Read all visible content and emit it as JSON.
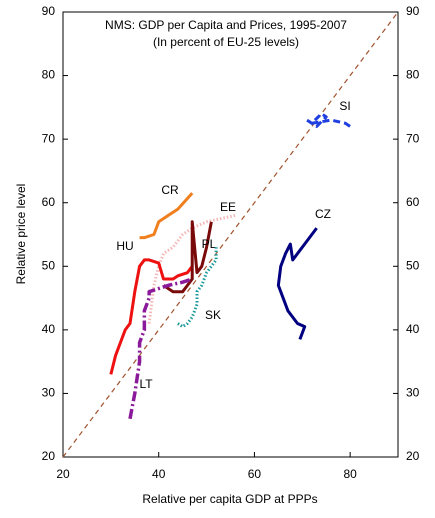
{
  "chart_data": {
    "type": "line",
    "title": "NMS: GDP per Capita and Prices, 1995-2007",
    "subtitle": "(In percent of EU-25 levels)",
    "x_label": "Relative per capita GDP at PPPs",
    "y_label": "Relative price level",
    "xlim": [
      20,
      90
    ],
    "xticks": [
      20,
      40,
      60,
      80
    ],
    "ylim": [
      20,
      90
    ],
    "yticks": [
      20,
      30,
      40,
      50,
      60,
      70,
      80,
      90
    ],
    "y2lim": [
      20,
      90
    ],
    "y2ticks": [
      20,
      30,
      40,
      50,
      60,
      70,
      80,
      90
    ],
    "grid": false,
    "reference_line": {
      "x": [
        20,
        90
      ],
      "values": [
        20,
        90
      ],
      "color": "#a0522d",
      "style": "dashed"
    },
    "series": [
      {
        "name": "SI",
        "color": "#1f3fe0",
        "style": "dashed",
        "x": [
          71,
          73,
          75,
          74,
          72,
          76,
          79,
          80
        ],
        "values": [
          73,
          72,
          73.5,
          74,
          72.5,
          73,
          72.5,
          72
        ]
      },
      {
        "name": "CZ",
        "color": "#000080",
        "style": "solid",
        "x": [
          69.5,
          70.5,
          69,
          67,
          66,
          65,
          65.5,
          66.5,
          67.5,
          68,
          69,
          71,
          73
        ],
        "values": [
          38.5,
          40.5,
          41,
          43,
          45,
          47,
          50,
          52,
          53.5,
          51,
          52,
          54,
          56
        ]
      },
      {
        "name": "EE",
        "color": "#f4b6b6",
        "style": "dotted",
        "x": [
          38,
          38.5,
          39,
          40,
          41,
          43,
          45,
          47,
          50,
          53,
          56
        ],
        "values": [
          41,
          44,
          47,
          50,
          52,
          53,
          55,
          56,
          57,
          57.5,
          58
        ]
      },
      {
        "name": "CR",
        "color": "#f07f1e",
        "style": "solid",
        "x": [
          36,
          37,
          39,
          40,
          42,
          44,
          47
        ],
        "values": [
          54.5,
          54.5,
          55,
          57,
          58,
          59,
          61.5
        ]
      },
      {
        "name": "HU",
        "color": "#ee1111",
        "style": "solid",
        "x": [
          30,
          31,
          33,
          34,
          35,
          36,
          37,
          38,
          40,
          41,
          43,
          44,
          46,
          47
        ],
        "values": [
          33,
          36,
          40,
          41,
          46,
          50,
          51,
          51,
          50.5,
          48,
          48,
          48.5,
          49,
          50
        ]
      },
      {
        "name": "PL",
        "color": "#7a0a0a",
        "style": "solid",
        "x": [
          41,
          43,
          45,
          46,
          47,
          47,
          48,
          49,
          50,
          51
        ],
        "values": [
          47,
          46,
          46,
          47,
          48,
          57,
          49,
          50,
          53,
          57
        ]
      },
      {
        "name": "SK",
        "color": "#1a9a9a",
        "style": "dotted",
        "x": [
          44,
          45,
          46,
          47,
          48,
          48,
          49,
          50,
          51,
          52,
          52
        ],
        "values": [
          41,
          40.5,
          41,
          42,
          44,
          46,
          47,
          49,
          50,
          51,
          53
        ]
      },
      {
        "name": "LT",
        "color": "#8b1a9a",
        "style": "dash-dot",
        "x": [
          34,
          35,
          36,
          36,
          37,
          37,
          38,
          38,
          40,
          42,
          45,
          47
        ],
        "values": [
          26,
          30,
          35,
          38,
          40,
          43,
          45,
          46,
          46.5,
          47,
          47.5,
          48
        ]
      }
    ]
  }
}
